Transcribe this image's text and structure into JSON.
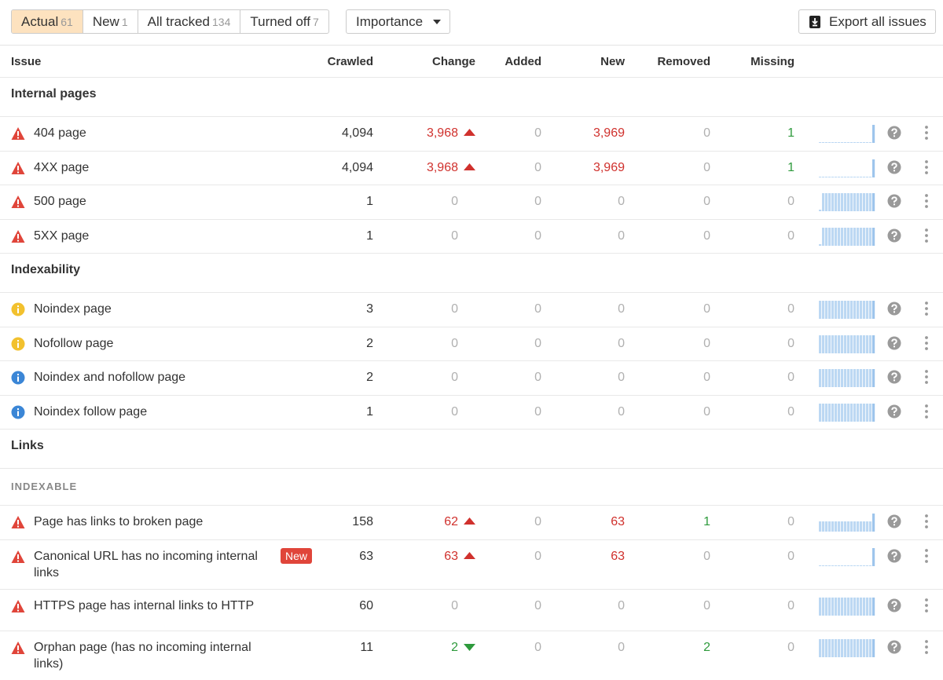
{
  "tabs": [
    {
      "label": "Actual",
      "count": 61,
      "active": true
    },
    {
      "label": "New",
      "count": 1
    },
    {
      "label": "All tracked",
      "count": 134
    },
    {
      "label": "Turned off",
      "count": 7
    }
  ],
  "importance": "Importance",
  "export": "Export all issues",
  "columns": [
    "Issue",
    "Crawled",
    "Change",
    "Added",
    "New",
    "Removed",
    "Missing"
  ],
  "sections": [
    {
      "title": "Internal pages",
      "rows": [
        {
          "severity": "error",
          "issue": "404 page",
          "crawled": "4,094",
          "change": "3,968",
          "change_dir": "up",
          "added": "0",
          "new": "3,969",
          "removed": "0",
          "missing": "1",
          "trend": "spike"
        },
        {
          "severity": "error",
          "issue": "4XX page",
          "crawled": "4,094",
          "change": "3,968",
          "change_dir": "up",
          "added": "0",
          "new": "3,969",
          "removed": "0",
          "missing": "1",
          "trend": "spike"
        },
        {
          "severity": "error",
          "issue": "500 page",
          "crawled": "1",
          "change": "0",
          "added": "0",
          "new": "0",
          "removed": "0",
          "missing": "0",
          "trend": "step"
        },
        {
          "severity": "error",
          "issue": "5XX page",
          "crawled": "1",
          "change": "0",
          "added": "0",
          "new": "0",
          "removed": "0",
          "missing": "0",
          "trend": "step"
        }
      ]
    },
    {
      "title": "Indexability",
      "rows": [
        {
          "severity": "warning",
          "issue": "Noindex page",
          "crawled": "3",
          "change": "0",
          "added": "0",
          "new": "0",
          "removed": "0",
          "missing": "0",
          "trend": "full"
        },
        {
          "severity": "warning",
          "issue": "Nofollow page",
          "crawled": "2",
          "change": "0",
          "added": "0",
          "new": "0",
          "removed": "0",
          "missing": "0",
          "trend": "full"
        },
        {
          "severity": "notice",
          "issue": "Noindex and nofollow page",
          "crawled": "2",
          "change": "0",
          "added": "0",
          "new": "0",
          "removed": "0",
          "missing": "0",
          "trend": "full"
        },
        {
          "severity": "notice",
          "issue": "Noindex follow page",
          "crawled": "1",
          "change": "0",
          "added": "0",
          "new": "0",
          "removed": "0",
          "missing": "0",
          "trend": "full"
        }
      ]
    },
    {
      "title": "Links",
      "subtitle": "INDEXABLE",
      "rows": [
        {
          "severity": "error",
          "issue": "Page has links to broken page",
          "crawled": "158",
          "change": "62",
          "change_dir": "up",
          "added": "0",
          "new": "63",
          "removed": "1",
          "missing": "0",
          "trend": "rise"
        },
        {
          "severity": "error",
          "issue": "Canonical URL has no incoming internal links",
          "badge": "New",
          "crawled": "63",
          "change": "63",
          "change_dir": "up",
          "added": "0",
          "new": "63",
          "removed": "0",
          "missing": "0",
          "trend": "spike"
        },
        {
          "severity": "error",
          "issue": "HTTPS page has internal links to HTTP",
          "crawled": "60",
          "change": "0",
          "added": "0",
          "new": "0",
          "removed": "0",
          "missing": "0",
          "trend": "full"
        },
        {
          "severity": "error",
          "issue": "Orphan page (has no incoming internal links)",
          "crawled": "11",
          "change": "2",
          "change_dir": "down",
          "added": "0",
          "new": "0",
          "removed": "2",
          "missing": "0",
          "trend": "full"
        }
      ]
    }
  ]
}
